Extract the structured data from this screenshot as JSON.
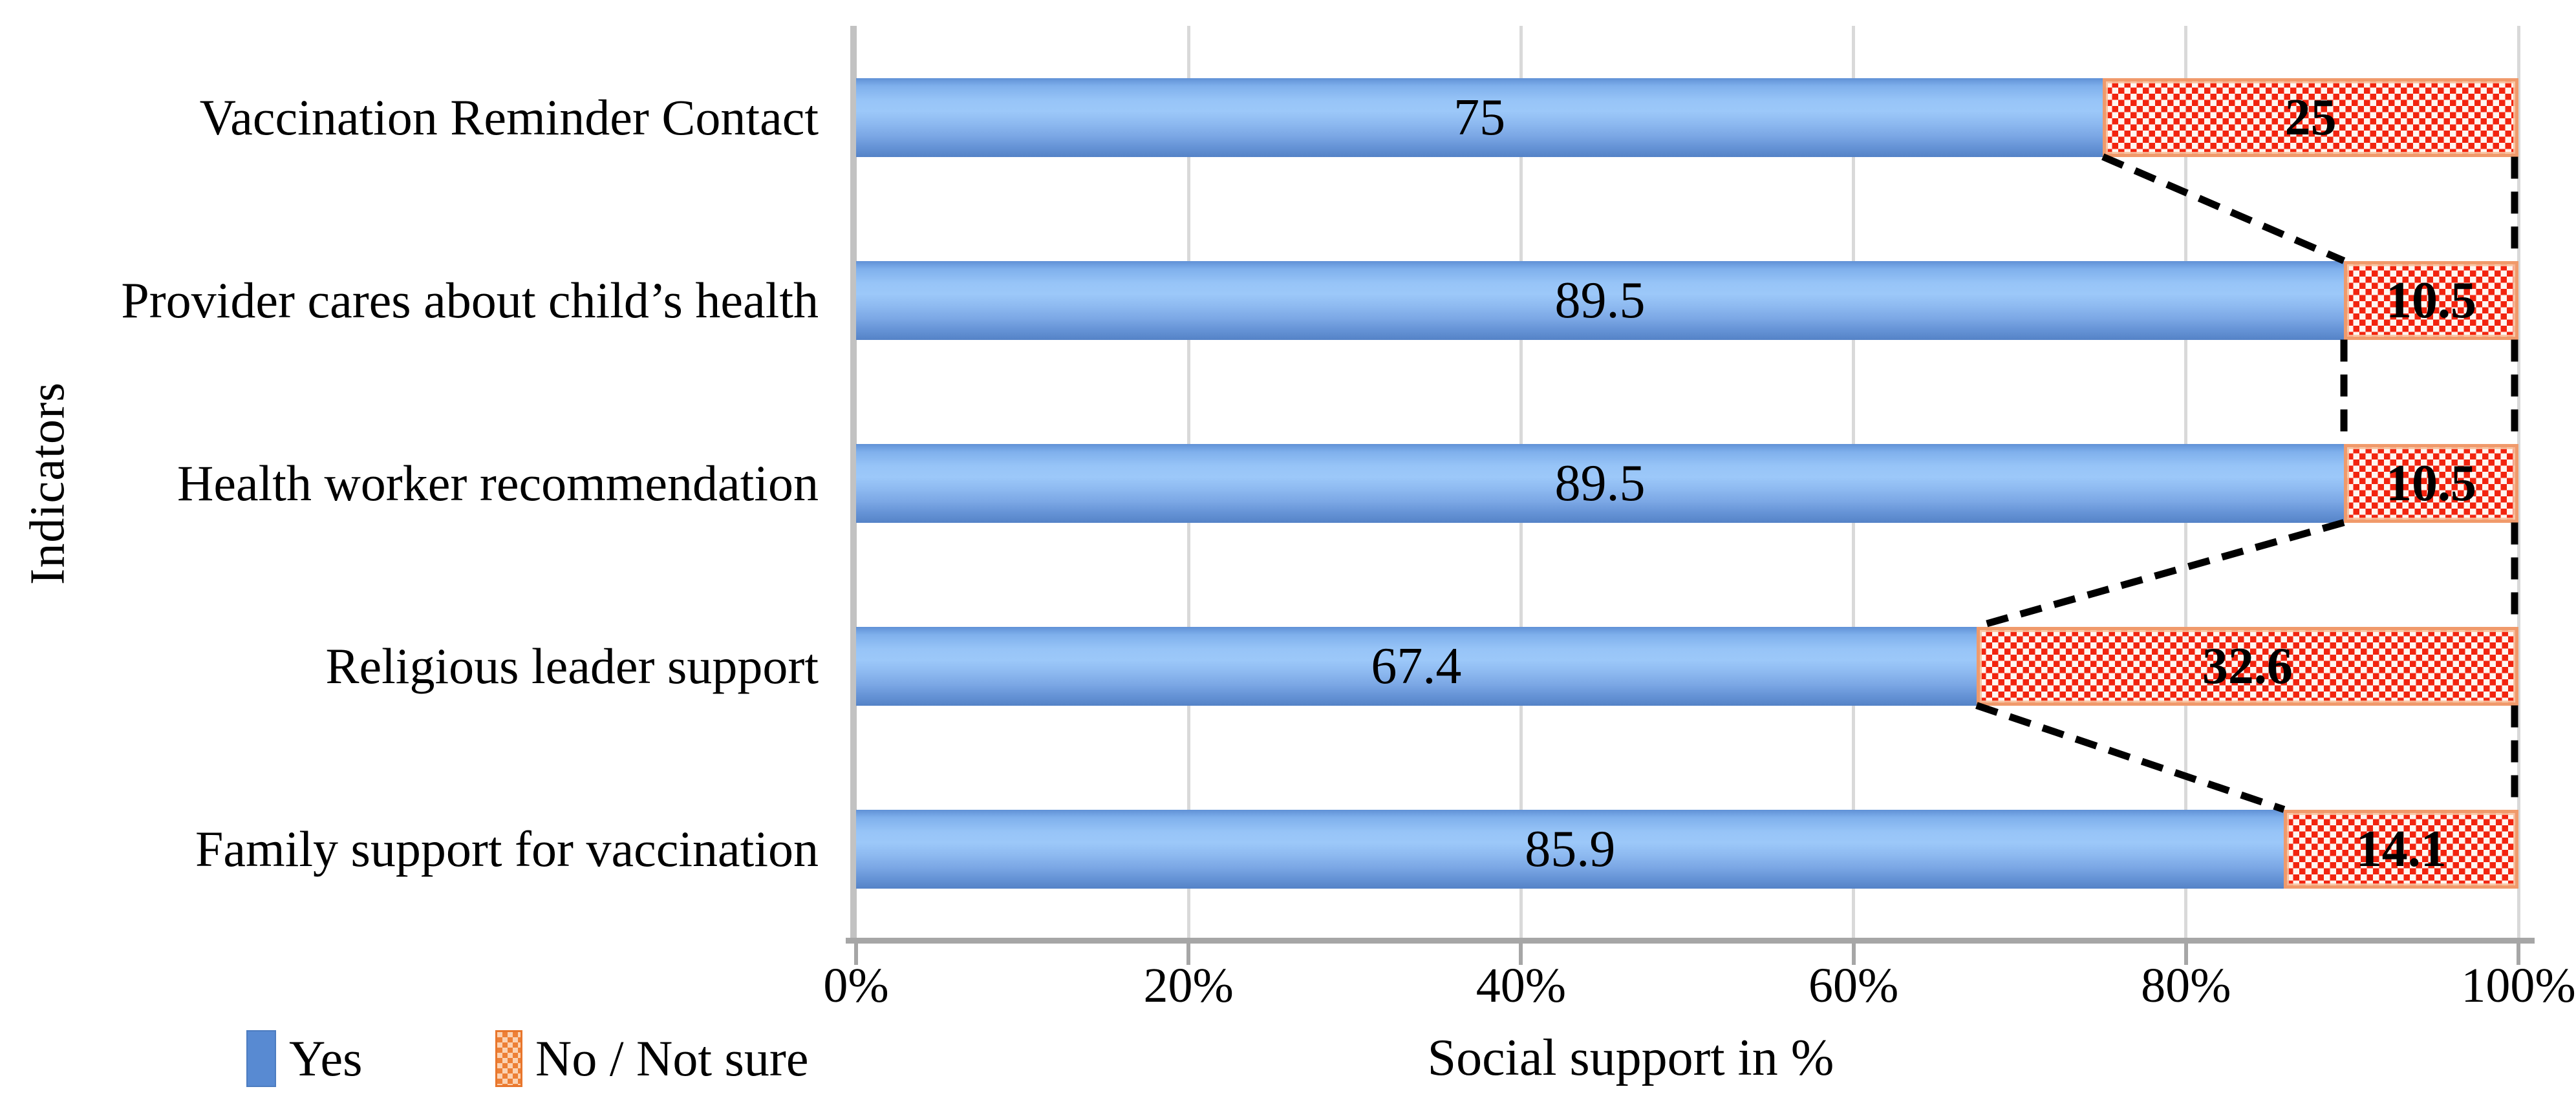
{
  "chart_data": {
    "type": "bar",
    "orientation": "horizontal",
    "stacked": true,
    "title": "",
    "xlabel": "Social support in %",
    "ylabel": "Indicators",
    "categories": [
      "Vaccination Reminder Contact",
      "Provider cares about child’s health",
      "Health worker recommendation",
      "Religious leader support",
      "Family support for vaccination"
    ],
    "series": [
      {
        "name": "Yes",
        "values": [
          75,
          89.5,
          89.5,
          67.4,
          85.9
        ]
      },
      {
        "name": "No / Not sure",
        "values": [
          25,
          10.5,
          10.5,
          32.6,
          14.1
        ]
      }
    ],
    "xlim": [
      0,
      100
    ],
    "x_ticks": [
      "0%",
      "20%",
      "40%",
      "60%",
      "80%",
      "100%"
    ],
    "grid": "vertical-only",
    "legend_position": "bottom-left",
    "annotations": "dashed black series connector lines between stack boundaries and at 100% line"
  },
  "y_axis": {
    "title": "Indicators"
  },
  "x_axis": {
    "title": "Social support in %",
    "ticks": [
      "0%",
      "20%",
      "40%",
      "60%",
      "80%",
      "100%"
    ]
  },
  "legend": {
    "items": [
      {
        "label": "Yes",
        "swatch": "blue-solid-rect"
      },
      {
        "label": "No / Not sure",
        "swatch": "red-checker-rect"
      }
    ]
  },
  "colors": {
    "yes_fill_mid": "#9cc8f9",
    "yes_fill_dark": "#5583c7",
    "no_check_red": "#f2240f",
    "no_border_orange": "#ed7d31",
    "legend_yes_blue": "#588ad2",
    "legend_no_orange": "#ee8036",
    "gridline": "#d9d9d9",
    "axis_line": "#a6a6a6",
    "connector_line": "#000000",
    "text": "#000000",
    "background": "#ffffff"
  }
}
